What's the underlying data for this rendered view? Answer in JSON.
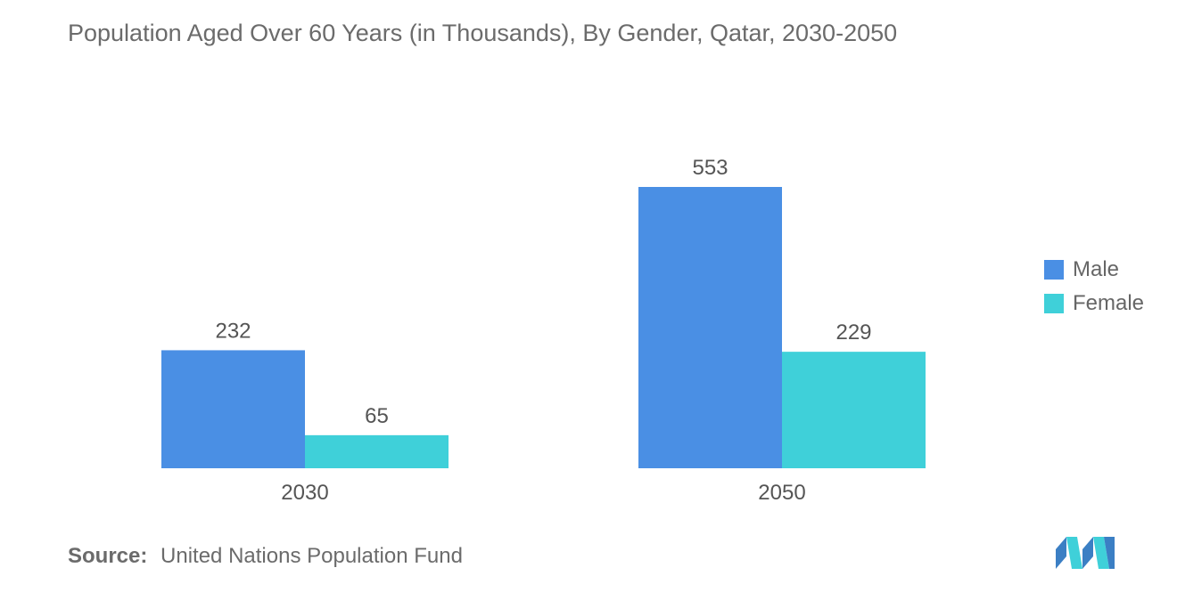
{
  "title": "Population Aged Over 60 Years (in Thousands), By Gender, Qatar, 2030-2050",
  "source": {
    "label": "Source:",
    "text": "United Nations Population Fund"
  },
  "colors": {
    "male": "#4a8fe4",
    "female": "#3fd0d9",
    "text": "#555555"
  },
  "chart_data": {
    "type": "bar",
    "title": "Population Aged Over 60 Years (in Thousands), By Gender, Qatar, 2030-2050",
    "categories": [
      "2030",
      "2050"
    ],
    "series": [
      {
        "name": "Male",
        "values": [
          232,
          553
        ]
      },
      {
        "name": "Female",
        "values": [
          65,
          229
        ]
      }
    ],
    "xlabel": "",
    "ylabel": "",
    "ylim": [
      0,
      553
    ],
    "legend": "right",
    "grid": false
  }
}
